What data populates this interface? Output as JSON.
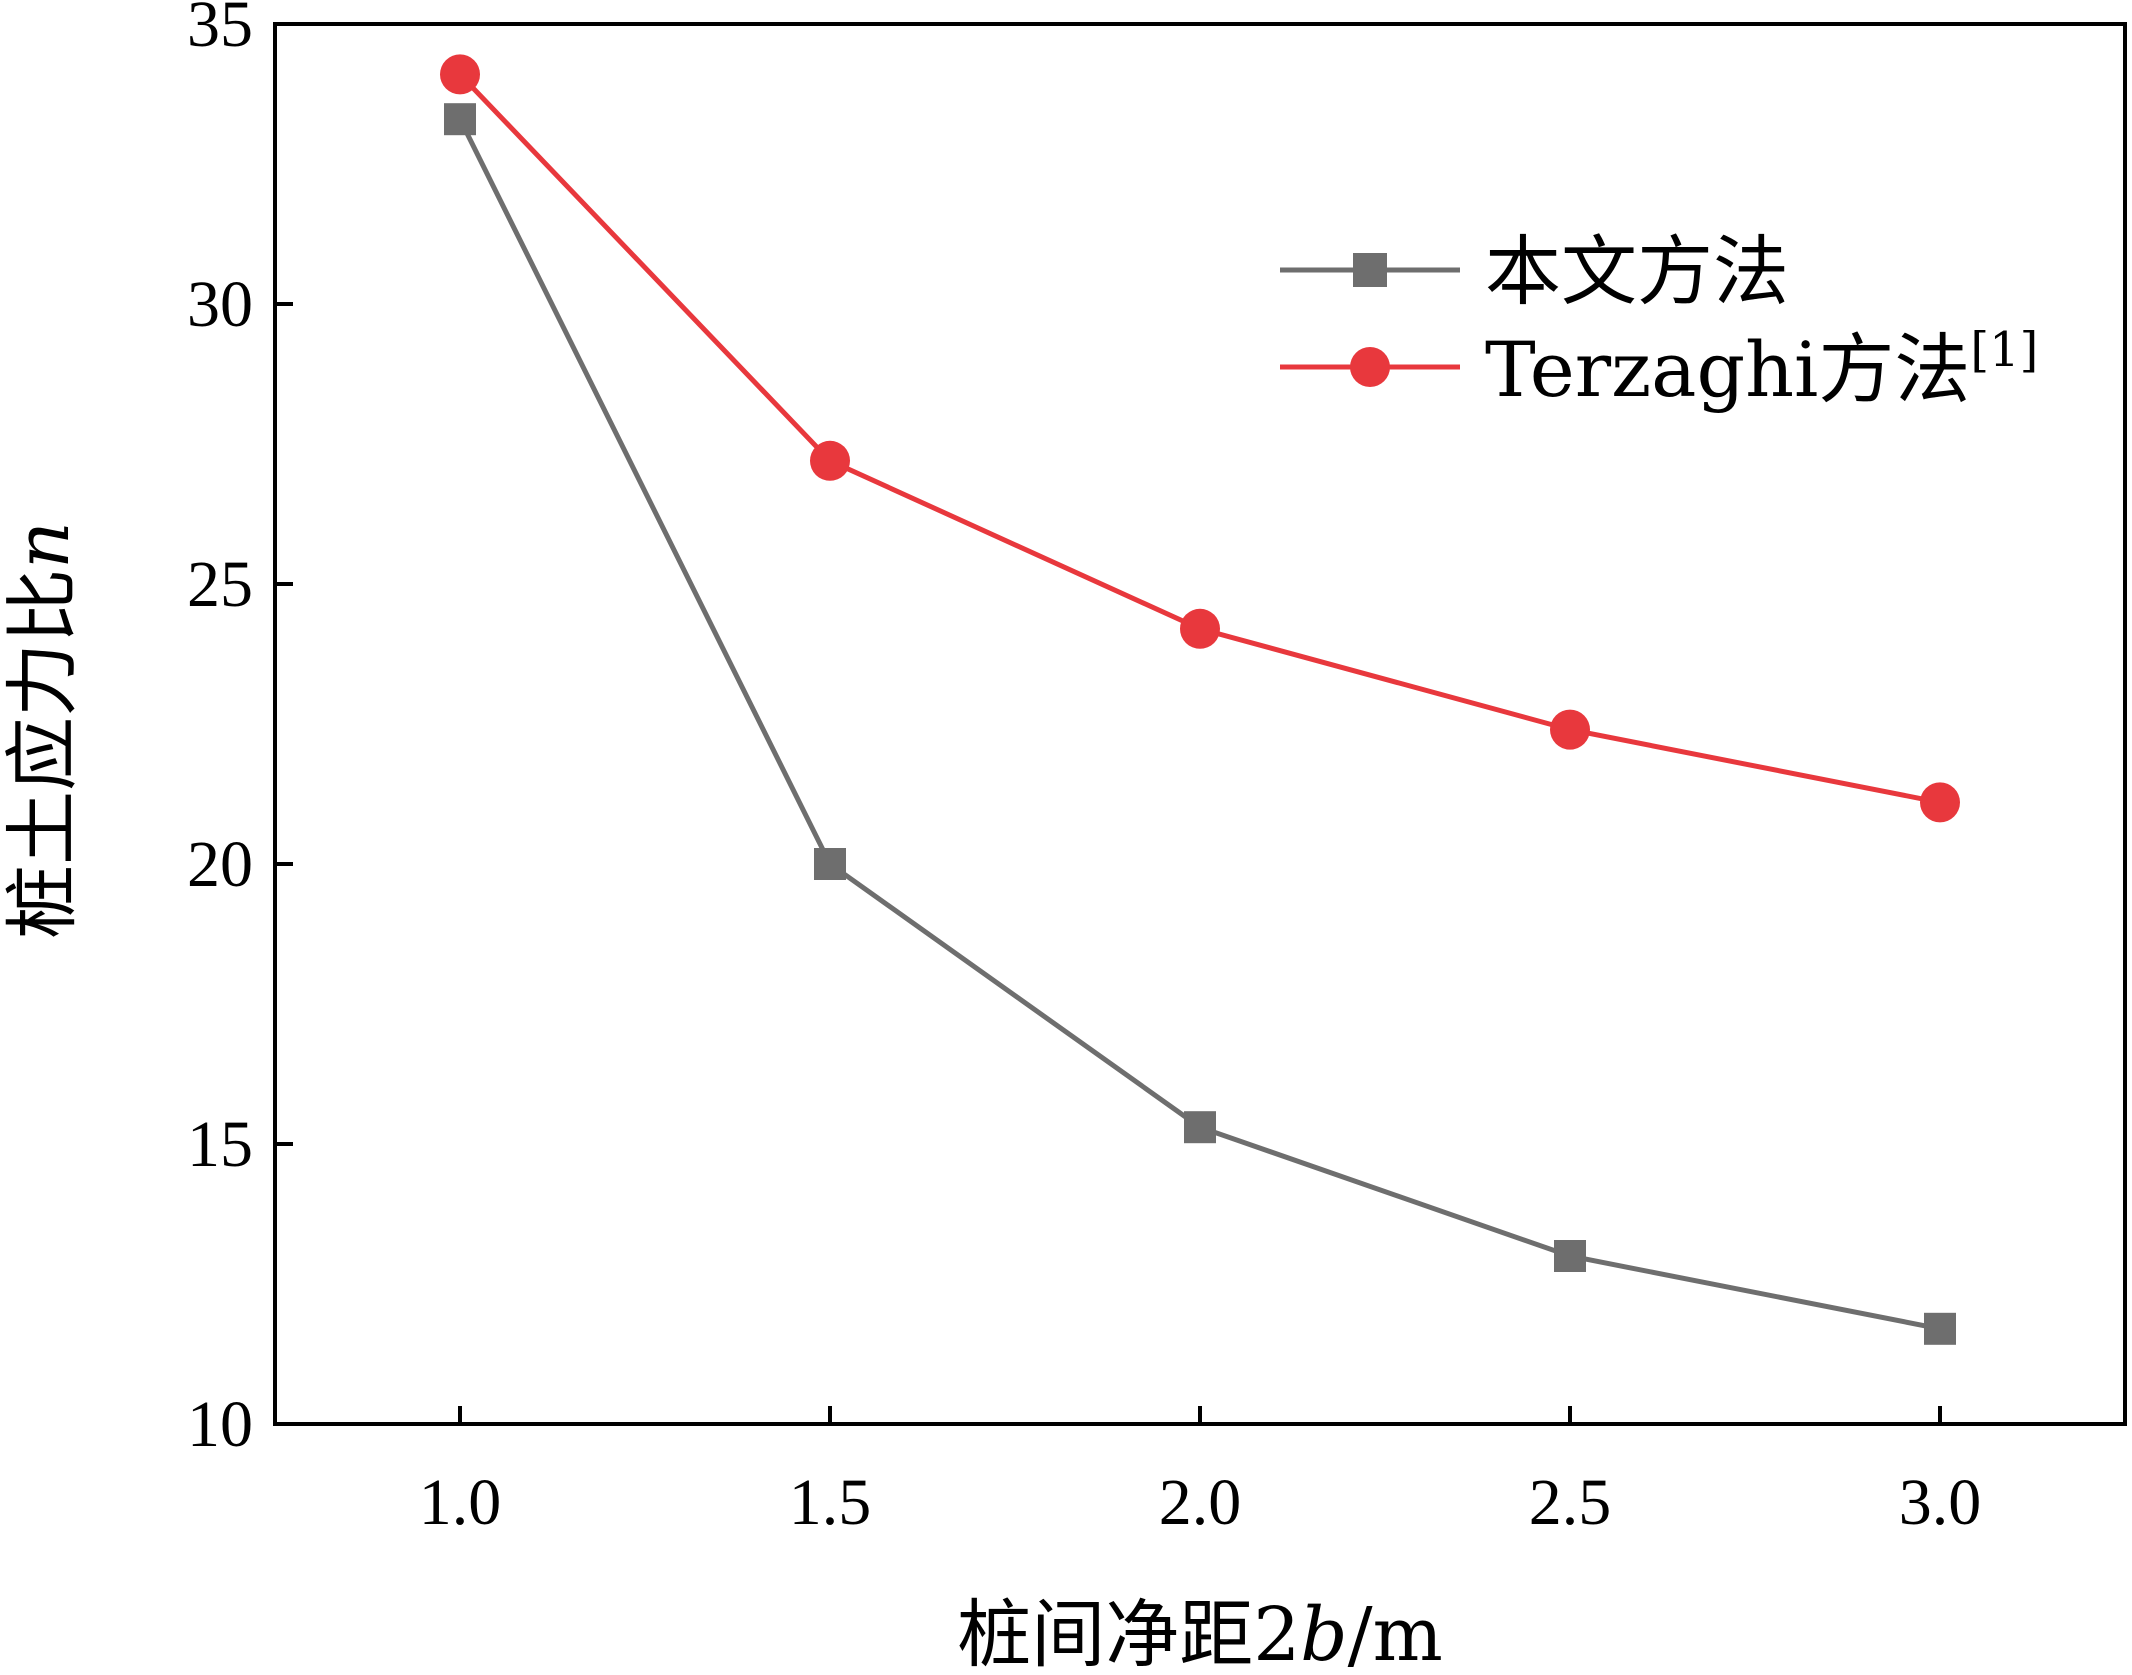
{
  "chart_data": {
    "type": "line",
    "x": [
      1.0,
      1.5,
      2.0,
      2.5,
      3.0
    ],
    "x_tick_labels": [
      "1.0",
      "1.5",
      "2.0",
      "2.5",
      "3.0"
    ],
    "y_tick_labels": [
      "10",
      "15",
      "20",
      "25",
      "30",
      "35"
    ],
    "xlim": [
      0.75,
      3.25
    ],
    "ylim": [
      10,
      35
    ],
    "grid": false,
    "legend_position": "top-right",
    "series": [
      {
        "name": "本文方法",
        "values": [
          33.3,
          20.0,
          15.3,
          13.0,
          11.7
        ],
        "color": "#6e6e6e",
        "marker": "square"
      },
      {
        "name": "Terzaghi方法",
        "name_sup": "[1]",
        "values": [
          34.1,
          27.2,
          24.2,
          22.4,
          21.1
        ],
        "color": "#e8383d",
        "marker": "circle"
      }
    ],
    "xlabel": {
      "prefix": "桩间净距2",
      "italic": "b",
      "suffix": "/m"
    },
    "ylabel": {
      "prefix": "桩土应力比",
      "italic": "n"
    }
  }
}
